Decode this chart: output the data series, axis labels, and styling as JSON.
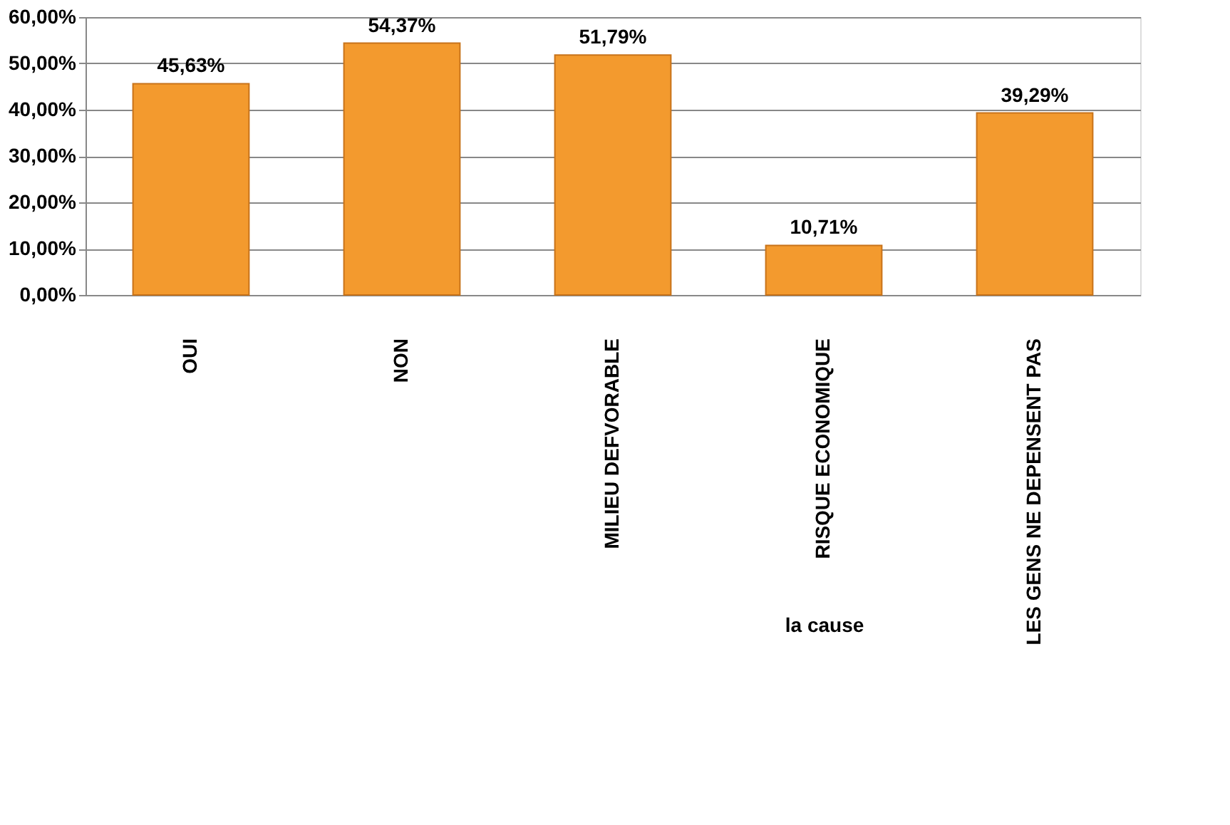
{
  "chart_data": {
    "type": "bar",
    "categories": [
      "OUI",
      "NON",
      "MILIEU DEFVORABLE",
      "RISQUE ECONOMIQUE",
      "LES GENS NE DEPENSENT PAS"
    ],
    "values": [
      45.63,
      54.37,
      51.79,
      10.71,
      39.29
    ],
    "value_labels": [
      "45,63%",
      "54,37%",
      "51,79%",
      "10,71%",
      "39,29%"
    ],
    "color": "#f39a2e",
    "xlabel": "la cause",
    "ylim": [
      0,
      60
    ],
    "yticks": [
      {
        "value": 0,
        "label": "0,00%"
      },
      {
        "value": 10,
        "label": "10,00%"
      },
      {
        "value": 20,
        "label": "20,00%"
      },
      {
        "value": 30,
        "label": "30,00%"
      },
      {
        "value": 40,
        "label": "40,00%"
      },
      {
        "value": 50,
        "label": "50,00%"
      },
      {
        "value": 60,
        "label": "60,00%"
      }
    ],
    "grid": "y"
  }
}
